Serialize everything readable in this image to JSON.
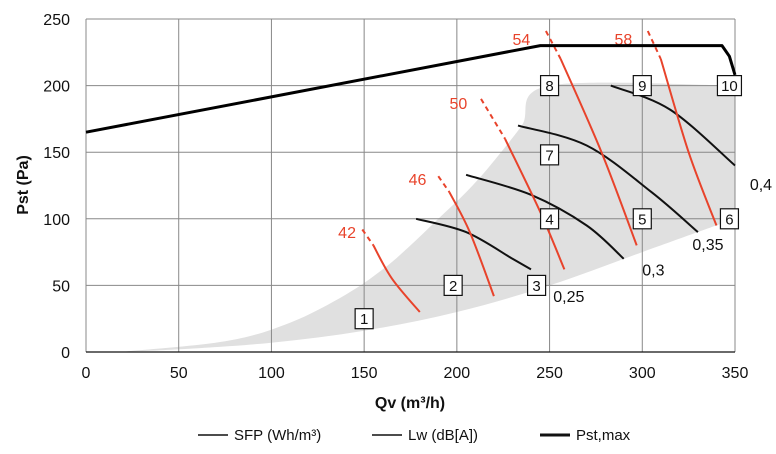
{
  "chart_data": {
    "type": "line",
    "xlabel": "Qv (m³/h)",
    "ylabel": "Pst (Pa)",
    "xlim": [
      0,
      350
    ],
    "ylim": [
      0,
      250
    ],
    "x_ticks": [
      "0",
      "50",
      "100",
      "150",
      "200",
      "250",
      "300",
      "350"
    ],
    "y_ticks": [
      "0",
      "50",
      "100",
      "150",
      "200",
      "250"
    ],
    "grid": true,
    "legend_position": "bottom",
    "colors": {
      "sfp": "#111111",
      "lw": "#e8432b",
      "pst_max": "#000000",
      "area": "#e0e0e0",
      "grid": "#888888"
    },
    "legend": [
      {
        "label": "SFP (Wh/m³)",
        "style": "sfp"
      },
      {
        "label": "Lw (dB[A])",
        "style": "sfp"
      },
      {
        "label": "Pst,max",
        "style": "pst_max"
      }
    ],
    "operating_area": {
      "lower": [
        [
          18,
          0
        ],
        [
          50,
          2
        ],
        [
          100,
          7
        ],
        [
          150,
          16
        ],
        [
          200,
          30
        ],
        [
          250,
          50
        ],
        [
          300,
          75
        ],
        [
          350,
          100
        ]
      ],
      "upper": [
        [
          350,
          200
        ],
        [
          250,
          200
        ],
        [
          235,
          170
        ],
        [
          218,
          140
        ],
        [
          205,
          120
        ],
        [
          190,
          100
        ],
        [
          175,
          80
        ],
        [
          160,
          62
        ],
        [
          140,
          43
        ],
        [
          110,
          22
        ],
        [
          75,
          8
        ],
        [
          18,
          0
        ]
      ]
    },
    "pst_max": {
      "name": "Pst,max",
      "points": [
        [
          0,
          165
        ],
        [
          245,
          230
        ],
        [
          343,
          230
        ],
        [
          347,
          222
        ],
        [
          350,
          208
        ]
      ]
    },
    "sfp_curves": [
      {
        "label": "0,25",
        "points": [
          [
            178,
            100
          ],
          [
            205,
            90
          ],
          [
            230,
            70
          ],
          [
            240,
            62
          ]
        ],
        "label_at": [
          252,
          42
        ]
      },
      {
        "label": "0,3",
        "points": [
          [
            205,
            133
          ],
          [
            240,
            118
          ],
          [
            270,
            95
          ],
          [
            290,
            70
          ]
        ],
        "label_at": [
          300,
          62
        ]
      },
      {
        "label": "0,35",
        "points": [
          [
            233,
            170
          ],
          [
            270,
            155
          ],
          [
            305,
            120
          ],
          [
            330,
            90
          ]
        ],
        "label_at": [
          327,
          81
        ]
      },
      {
        "label": "0,4",
        "points": [
          [
            283,
            200
          ],
          [
            315,
            182
          ],
          [
            350,
            140
          ]
        ],
        "label_at": [
          358,
          126
        ]
      }
    ],
    "lw_curves": [
      {
        "label": "42",
        "points": [
          [
            149,
            92
          ],
          [
            155,
            80
          ],
          [
            165,
            55
          ],
          [
            180,
            30
          ]
        ],
        "label_at": [
          136,
          90
        ]
      },
      {
        "label": "46",
        "points": [
          [
            190,
            132
          ],
          [
            196,
            120
          ],
          [
            207,
            90
          ],
          [
            220,
            42
          ]
        ],
        "label_at": [
          174,
          130
        ]
      },
      {
        "label": "50",
        "points": [
          [
            213,
            190
          ],
          [
            226,
            160
          ],
          [
            245,
            105
          ],
          [
            258,
            62
          ]
        ],
        "label_at": [
          196,
          187
        ]
      },
      {
        "label": "54",
        "points": [
          [
            248,
            241
          ],
          [
            256,
            220
          ],
          [
            278,
            150
          ],
          [
            297,
            80
          ]
        ],
        "label_at": [
          230,
          235
        ]
      },
      {
        "label": "58",
        "points": [
          [
            303,
            241
          ],
          [
            310,
            220
          ],
          [
            325,
            150
          ],
          [
            340,
            95
          ]
        ],
        "label_at": [
          285,
          235
        ]
      }
    ],
    "point_labels": [
      {
        "label": "1",
        "x": 150,
        "y": 25
      },
      {
        "label": "2",
        "x": 198,
        "y": 50
      },
      {
        "label": "3",
        "x": 243,
        "y": 50
      },
      {
        "label": "4",
        "x": 250,
        "y": 100
      },
      {
        "label": "5",
        "x": 300,
        "y": 100
      },
      {
        "label": "6",
        "x": 347,
        "y": 100
      },
      {
        "label": "7",
        "x": 250,
        "y": 148
      },
      {
        "label": "8",
        "x": 250,
        "y": 200
      },
      {
        "label": "9",
        "x": 300,
        "y": 200
      },
      {
        "label": "10",
        "x": 347,
        "y": 200
      }
    ]
  }
}
